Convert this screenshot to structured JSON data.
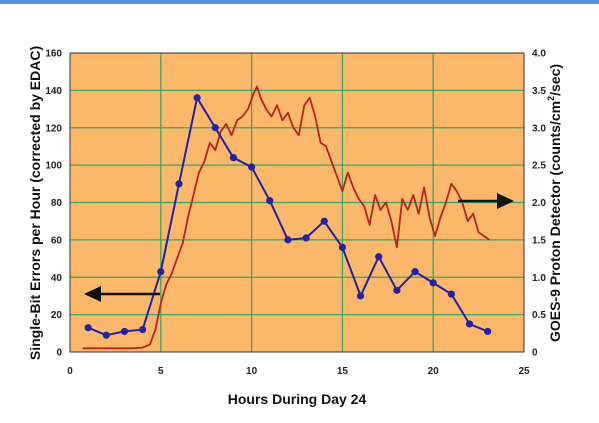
{
  "chart_data": {
    "type": "line",
    "xlabel": "Hours During Day 24",
    "ylabel_left": "Single-Bit Errors per Hour (corrected by EDAC)",
    "ylabel_right_parts": [
      "GOES-9 Proton Detector (counts/cm",
      "2",
      "/sec)"
    ],
    "xlim": [
      0,
      25
    ],
    "ylim_left": [
      0,
      160
    ],
    "ylim_right": [
      0,
      4.0
    ],
    "x_ticks": [
      "0",
      "5",
      "10",
      "15",
      "20",
      "25"
    ],
    "y_left_ticks": [
      "0",
      "20",
      "40",
      "60",
      "80",
      "100",
      "120",
      "140",
      "160"
    ],
    "y_right_ticks": [
      "0",
      "0.5",
      "1.0",
      "1.5",
      "2.0",
      "2.5",
      "3.0",
      "3.5",
      "4.0"
    ],
    "grid": true,
    "colors": {
      "background": "#fbb86a",
      "grid": "#3aa565",
      "errors_series": "#2222a3",
      "proton_series": "#b3261e"
    },
    "series": [
      {
        "axis": "left",
        "marker": "circle",
        "x": [
          1,
          2,
          3,
          4,
          5,
          6,
          7,
          8,
          9,
          10,
          11,
          12,
          13,
          14,
          15,
          16,
          17,
          18,
          19,
          20,
          21,
          22,
          23
        ],
        "values": [
          13,
          9,
          11,
          12,
          43,
          90,
          136,
          120,
          104,
          99,
          81,
          60,
          61,
          70,
          56,
          30,
          51,
          33,
          43,
          37,
          31,
          15,
          11
        ]
      },
      {
        "axis": "right",
        "x": [
          0.7,
          1.5,
          2.5,
          3.5,
          4.0,
          4.4,
          4.7,
          5.0,
          5.3,
          5.6,
          5.9,
          6.2,
          6.5,
          6.8,
          7.1,
          7.4,
          7.7,
          8.0,
          8.3,
          8.6,
          8.9,
          9.2,
          9.5,
          9.8,
          10.1,
          10.3,
          10.5,
          10.8,
          11.1,
          11.4,
          11.7,
          12.0,
          12.3,
          12.6,
          12.9,
          13.2,
          13.5,
          13.8,
          14.1,
          14.4,
          14.7,
          15.0,
          15.3,
          15.6,
          15.9,
          16.2,
          16.5,
          16.8,
          17.1,
          17.4,
          17.7,
          18.0,
          18.3,
          18.6,
          18.9,
          19.2,
          19.5,
          19.8,
          20.1,
          20.4,
          20.7,
          21.0,
          21.3,
          21.6,
          21.9,
          22.2,
          22.5,
          22.8,
          23.1
        ],
        "values": [
          0.05,
          0.05,
          0.05,
          0.05,
          0.06,
          0.1,
          0.3,
          0.65,
          0.9,
          1.05,
          1.25,
          1.45,
          1.8,
          2.1,
          2.4,
          2.55,
          2.8,
          2.7,
          2.95,
          3.05,
          2.9,
          3.1,
          3.15,
          3.25,
          3.45,
          3.55,
          3.4,
          3.25,
          3.15,
          3.3,
          3.1,
          3.2,
          3.0,
          2.9,
          3.3,
          3.4,
          3.15,
          2.8,
          2.75,
          2.55,
          2.35,
          2.15,
          2.4,
          2.2,
          2.05,
          1.95,
          1.7,
          2.1,
          1.9,
          2.0,
          1.75,
          1.4,
          2.05,
          1.9,
          2.1,
          1.85,
          2.2,
          1.8,
          1.55,
          1.8,
          2.0,
          2.25,
          2.15,
          2.0,
          1.75,
          1.85,
          1.6,
          1.55,
          1.5
        ]
      }
    ]
  }
}
